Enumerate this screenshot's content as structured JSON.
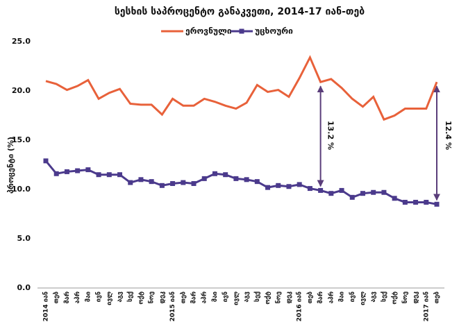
{
  "chart_data": {
    "type": "line",
    "title": "სესხის საპროცენტო განაკვეთი, 2014-17 იან-თებ",
    "y_label": "პროცენტი (%)",
    "categories": [
      "2014 იან",
      "თებ",
      "მარ",
      "აპრ",
      "მაი",
      "ივნ",
      "ივლ",
      "აგვ",
      "სექ",
      "ოქტ",
      "ნოე",
      "დეკ",
      "2015 იან",
      "თებ",
      "მარ",
      "აპრ",
      "მაი",
      "ივნ",
      "ივლ",
      "აგვ",
      "სექ",
      "ოქტ",
      "ნოე",
      "დეკ",
      "2016 იან",
      "თებ",
      "მარ",
      "აპრ",
      "მაი",
      "ივნ",
      "ივლ",
      "აგვ",
      "სექ",
      "ოქტ",
      "ნოე",
      "დეკ",
      "2017 იან",
      "თებ"
    ],
    "series": [
      {
        "name": "ეროვნული",
        "color": "#e8613a",
        "values": [
          21.0,
          20.7,
          20.1,
          20.5,
          21.1,
          19.2,
          19.8,
          20.2,
          18.7,
          18.6,
          18.6,
          17.6,
          19.2,
          18.5,
          18.5,
          19.2,
          18.9,
          18.5,
          18.2,
          18.8,
          20.6,
          19.9,
          20.1,
          19.4,
          21.3,
          23.4,
          20.9,
          21.2,
          20.3,
          19.2,
          18.4,
          19.4,
          17.1,
          17.5,
          18.2,
          18.2,
          18.2,
          20.9
        ]
      },
      {
        "name": "უცხოური",
        "color": "#4b3a8c",
        "marker": "square",
        "values": [
          12.9,
          11.6,
          11.8,
          11.9,
          12.0,
          11.5,
          11.5,
          11.5,
          10.7,
          11.0,
          10.8,
          10.4,
          10.6,
          10.7,
          10.6,
          11.1,
          11.6,
          11.5,
          11.1,
          11.0,
          10.8,
          10.2,
          10.4,
          10.3,
          10.5,
          10.1,
          9.9,
          9.6,
          9.9,
          9.2,
          9.6,
          9.7,
          9.7,
          9.1,
          8.7,
          8.7,
          8.7,
          8.5
        ]
      }
    ],
    "ylim": [
      0,
      25
    ],
    "yticks": [
      {
        "value": 0,
        "label": "0.0"
      },
      {
        "value": 5,
        "label": "5.0"
      },
      {
        "value": 10,
        "label": "10.0"
      },
      {
        "value": 15,
        "label": "15.0"
      },
      {
        "value": 20,
        "label": "20.0"
      },
      {
        "value": 25,
        "label": "25.0"
      }
    ],
    "grid": false,
    "legend": "top",
    "annotations": [
      "13.2 %",
      "12.4 %"
    ]
  }
}
